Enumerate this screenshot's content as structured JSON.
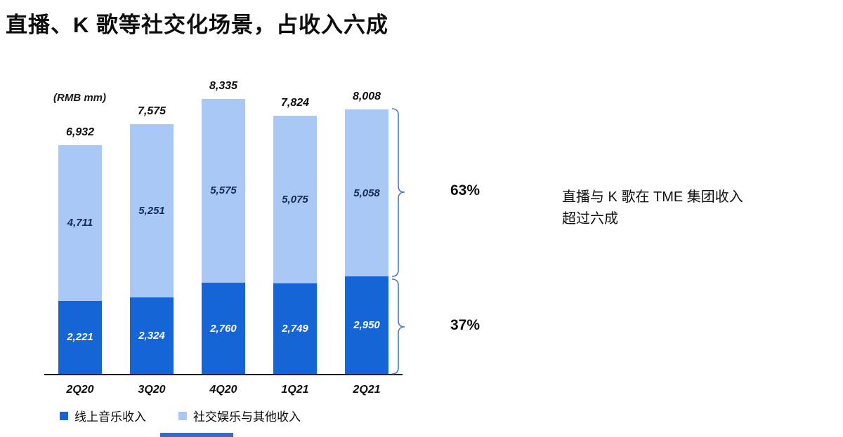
{
  "title": "直播、K 歌等社交化场景，占收入六成",
  "chart_data": {
    "type": "bar",
    "stacked": true,
    "unit_label": "(RMB mm)",
    "categories": [
      "2Q20",
      "3Q20",
      "4Q20",
      "1Q21",
      "2Q21"
    ],
    "series": [
      {
        "name": "线上音乐收入",
        "color": "#1565d6",
        "values": [
          2221,
          2324,
          2760,
          2749,
          2950
        ]
      },
      {
        "name": "社交娱乐与其他收入",
        "color": "#a9c8f5",
        "values": [
          4711,
          5251,
          5575,
          5075,
          5058
        ]
      }
    ],
    "totals": [
      6932,
      7575,
      8335,
      7824,
      8008
    ],
    "ylim": [
      0,
      8500
    ],
    "grid": false,
    "legend_position": "bottom-left"
  },
  "annotations": {
    "top_share": "63%",
    "bottom_share": "37%",
    "note_lines": [
      "直播与 K 歌在 TME 集团收入",
      "超过六成"
    ]
  },
  "footer": {
    "accent_color": "#2e6bd6"
  }
}
